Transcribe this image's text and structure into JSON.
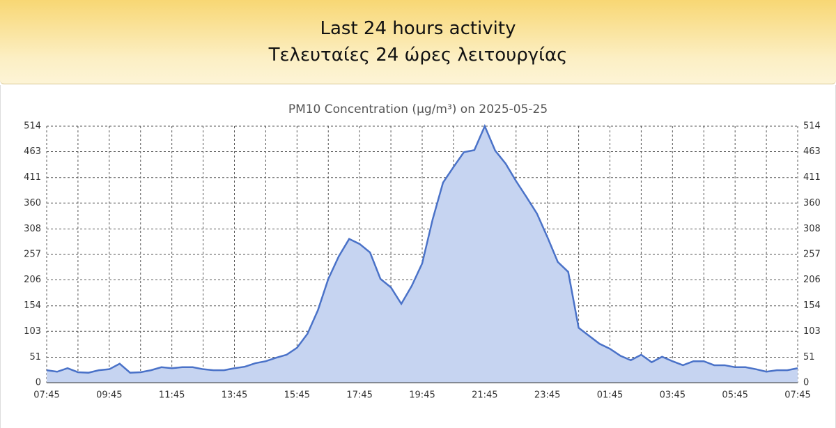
{
  "header": {
    "title_en": "Last 24 hours activity",
    "title_el": "Τελευταίες 24 ώρες λειτουργίας"
  },
  "chart_data": {
    "type": "area",
    "title": "PM10 Concentration (μg/m³) on 2025-05-25",
    "categories": [
      "07:45",
      null,
      null,
      null,
      null,
      null,
      "09:45",
      null,
      null,
      null,
      null,
      null,
      "11:45",
      null,
      null,
      null,
      null,
      null,
      "13:45",
      null,
      null,
      null,
      null,
      null,
      "15:45",
      null,
      null,
      null,
      null,
      null,
      "17:45",
      null,
      null,
      null,
      null,
      null,
      "19:45",
      null,
      null,
      null,
      null,
      null,
      "21:45",
      null,
      null,
      null,
      null,
      null,
      "23:45",
      null,
      null,
      null,
      null,
      null,
      "01:45",
      null,
      null,
      null,
      null,
      null,
      "03:45",
      null,
      null,
      null,
      null,
      null,
      "05:45",
      null,
      null,
      null,
      null,
      null,
      "07:45"
    ],
    "series": [
      {
        "name": "PM10",
        "color": "#4a72c8",
        "values": [
          25,
          22,
          29,
          21,
          20,
          25,
          27,
          38,
          20,
          21,
          25,
          31,
          29,
          31,
          31,
          27,
          25,
          25,
          29,
          32,
          39,
          43,
          50,
          56,
          70,
          98,
          145,
          208,
          253,
          288,
          278,
          261,
          208,
          191,
          158,
          194,
          239,
          327,
          401,
          432,
          462,
          466,
          514,
          465,
          439,
          404,
          372,
          339,
          292,
          242,
          222,
          110,
          94,
          78,
          68,
          54,
          45,
          56,
          41,
          52,
          43,
          35,
          43,
          43,
          35,
          35,
          31,
          31,
          27,
          22,
          25,
          25,
          29
        ]
      }
    ],
    "ylim": [
      0,
      514
    ],
    "yticks": [
      0,
      51,
      103,
      154,
      206,
      257,
      308,
      360,
      411,
      463,
      514
    ],
    "y2lim": [
      0,
      514
    ],
    "y2ticks": [
      0,
      51,
      103,
      154,
      206,
      257,
      308,
      360,
      411,
      463,
      514
    ],
    "grid": true
  }
}
